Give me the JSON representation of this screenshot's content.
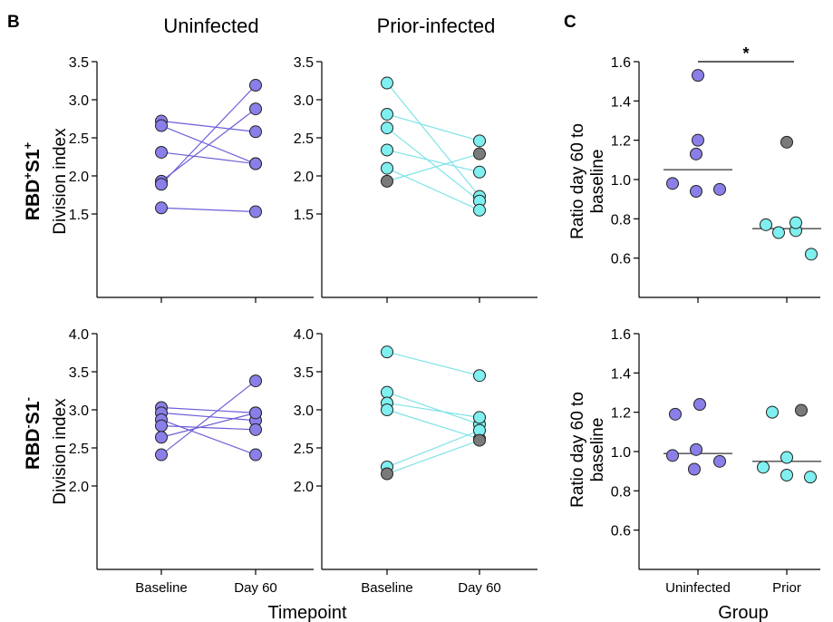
{
  "panel_labels": {
    "b": "B",
    "c": "C"
  },
  "col_titles": {
    "uninfected": "Uninfected",
    "prior": "Prior-infected"
  },
  "row_labels": {
    "top": {
      "base": "RBD",
      "sup1": "+",
      "mid": "S1",
      "sup2": "+"
    },
    "bottom": {
      "base": "RBD",
      "sup1": "-",
      "mid": "S1",
      "sup2": "-"
    }
  },
  "axis_labels": {
    "division_index": "Division index",
    "ratio": "Ratio day 60 to baseline",
    "timepoint": "Timepoint",
    "group": "Group"
  },
  "colors": {
    "uninfected": "#8A7FE8",
    "prior": "#7FEFEF",
    "grey": "#7A7A7A",
    "unin_line": "#6B5FD8",
    "prior_line": "#7FE3E8"
  },
  "chart_data": [
    {
      "id": "b-top-uninfected",
      "type": "line",
      "title": "Uninfected",
      "xlabel": "",
      "ylabel": "Division index",
      "categories": [
        "Baseline",
        "Day 60"
      ],
      "ylim": [
        1.0,
        3.5
      ],
      "yticks": [
        1.5,
        2.0,
        2.5,
        3.0,
        3.5
      ],
      "series": [
        {
          "values": [
            2.72,
            2.58
          ],
          "color": "uninfected"
        },
        {
          "values": [
            2.66,
            2.16
          ],
          "color": "uninfected"
        },
        {
          "values": [
            2.31,
            2.16
          ],
          "color": "uninfected"
        },
        {
          "values": [
            1.93,
            2.88
          ],
          "color": "uninfected"
        },
        {
          "values": [
            1.89,
            3.19
          ],
          "color": "uninfected"
        },
        {
          "values": [
            1.58,
            1.53
          ],
          "color": "uninfected"
        }
      ]
    },
    {
      "id": "b-top-prior",
      "type": "line",
      "title": "Prior-infected",
      "xlabel": "",
      "ylabel": "",
      "categories": [
        "Baseline",
        "Day 60"
      ],
      "ylim": [
        1.0,
        3.5
      ],
      "yticks": [
        1.5,
        2.0,
        2.5,
        3.0,
        3.5
      ],
      "series": [
        {
          "values": [
            3.22,
            1.73
          ],
          "color": "prior"
        },
        {
          "values": [
            2.81,
            2.46
          ],
          "color": "prior"
        },
        {
          "values": [
            2.63,
            1.67
          ],
          "color": "prior"
        },
        {
          "values": [
            2.34,
            2.05
          ],
          "color": "prior"
        },
        {
          "values": [
            2.1,
            1.55
          ],
          "color": "prior"
        },
        {
          "values": [
            1.93,
            2.29
          ],
          "color": "grey"
        }
      ]
    },
    {
      "id": "b-bottom-uninfected",
      "type": "line",
      "title": "",
      "xlabel": "",
      "ylabel": "Division index",
      "categories": [
        "Baseline",
        "Day 60"
      ],
      "ylim": [
        1.5,
        4.0
      ],
      "yticks": [
        2.0,
        2.5,
        3.0,
        3.5,
        4.0
      ],
      "series": [
        {
          "values": [
            3.03,
            2.96
          ],
          "color": "uninfected"
        },
        {
          "values": [
            2.96,
            2.86
          ],
          "color": "uninfected"
        },
        {
          "values": [
            2.87,
            2.41
          ],
          "color": "uninfected"
        },
        {
          "values": [
            2.79,
            2.74
          ],
          "color": "uninfected"
        },
        {
          "values": [
            2.64,
            2.96
          ],
          "color": "uninfected"
        },
        {
          "values": [
            2.41,
            3.38
          ],
          "color": "uninfected"
        }
      ]
    },
    {
      "id": "b-bottom-prior",
      "type": "line",
      "title": "",
      "xlabel": "",
      "ylabel": "",
      "categories": [
        "Baseline",
        "Day 60"
      ],
      "ylim": [
        1.5,
        4.0
      ],
      "yticks": [
        2.0,
        2.5,
        3.0,
        3.5,
        4.0
      ],
      "series": [
        {
          "values": [
            3.76,
            3.45
          ],
          "color": "prior"
        },
        {
          "values": [
            3.23,
            2.81
          ],
          "color": "prior"
        },
        {
          "values": [
            3.09,
            2.9
          ],
          "color": "prior"
        },
        {
          "values": [
            3.0,
            2.62
          ],
          "color": "prior"
        },
        {
          "values": [
            2.25,
            2.73
          ],
          "color": "prior"
        },
        {
          "values": [
            2.16,
            2.6
          ],
          "color": "grey"
        }
      ]
    },
    {
      "id": "c-top",
      "type": "scatter",
      "title": "",
      "xlabel": "",
      "ylabel": "Ratio day 60 to baseline",
      "categories": [
        "Uninfected",
        "Prior"
      ],
      "ylim": [
        0.4,
        1.6
      ],
      "yticks": [
        0.6,
        0.8,
        1.0,
        1.2,
        1.4,
        1.6
      ],
      "medians": [
        1.05,
        0.75
      ],
      "significance": "*",
      "groups": [
        {
          "category": "Uninfected",
          "points": [
            1.53,
            1.2,
            1.13,
            0.98,
            0.94,
            0.95
          ],
          "color": "uninfected"
        },
        {
          "category": "Prior",
          "points": [
            0.77,
            0.73,
            0.74,
            0.78,
            0.62
          ],
          "color": "prior"
        },
        {
          "category": "Prior",
          "points": [
            1.19
          ],
          "color": "grey"
        }
      ]
    },
    {
      "id": "c-bottom",
      "type": "scatter",
      "title": "",
      "xlabel": "Group",
      "ylabel": "Ratio day 60 to baseline",
      "categories": [
        "Uninfected",
        "Prior"
      ],
      "ylim": [
        0.4,
        1.6
      ],
      "yticks": [
        0.6,
        0.8,
        1.0,
        1.2,
        1.4,
        1.6
      ],
      "medians": [
        0.99,
        0.95
      ],
      "significance": "",
      "groups": [
        {
          "category": "Uninfected",
          "points": [
            1.19,
            1.24,
            0.98,
            1.01,
            0.91,
            0.95
          ],
          "color": "uninfected"
        },
        {
          "category": "Prior",
          "points": [
            1.2,
            0.92,
            0.97,
            0.87,
            0.88
          ],
          "color": "prior"
        },
        {
          "category": "Prior",
          "points": [
            1.21
          ],
          "color": "grey"
        }
      ]
    }
  ]
}
